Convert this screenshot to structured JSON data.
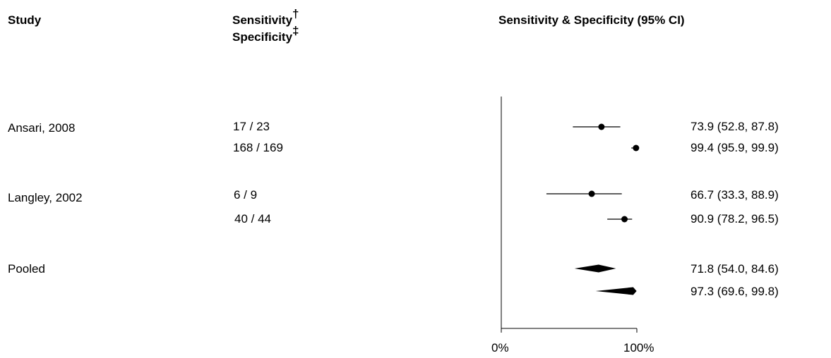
{
  "headers": {
    "study": "Study",
    "sensitivity": "Sensitivity",
    "sensitivity_mark": "†",
    "specificity": "Specificity",
    "specificity_mark": "‡",
    "plot": "Sensitivity & Specificity (95% CI)"
  },
  "chart_data": {
    "type": "forest",
    "x_axis": {
      "range": [
        0,
        100
      ],
      "tick_labels": [
        "0%",
        "100%"
      ]
    },
    "studies": [
      {
        "label": "Ansari, 2008",
        "rows": [
          {
            "counts": "17 / 23",
            "estimate": 73.9,
            "lower": 52.8,
            "upper": 87.8,
            "text": "73.9 (52.8, 87.8)"
          },
          {
            "counts": "168 / 169",
            "estimate": 99.4,
            "lower": 95.9,
            "upper": 99.9,
            "text": "99.4 (95.9, 99.9)"
          }
        ]
      },
      {
        "label": "Langley, 2002",
        "rows": [
          {
            "counts": "6 / 9",
            "estimate": 66.7,
            "lower": 33.3,
            "upper": 88.9,
            "text": "66.7 (33.3, 88.9)"
          },
          {
            "counts": "40 / 44",
            "estimate": 90.9,
            "lower": 78.2,
            "upper": 96.5,
            "text": "90.9 (78.2, 96.5)"
          }
        ]
      }
    ],
    "pooled": {
      "label": "Pooled",
      "rows": [
        {
          "estimate": 71.8,
          "lower": 54.0,
          "upper": 84.6,
          "text": "71.8 (54.0, 84.6)"
        },
        {
          "estimate": 97.3,
          "lower": 69.6,
          "upper": 99.8,
          "text": "97.3 (69.6, 99.8)"
        }
      ]
    }
  }
}
